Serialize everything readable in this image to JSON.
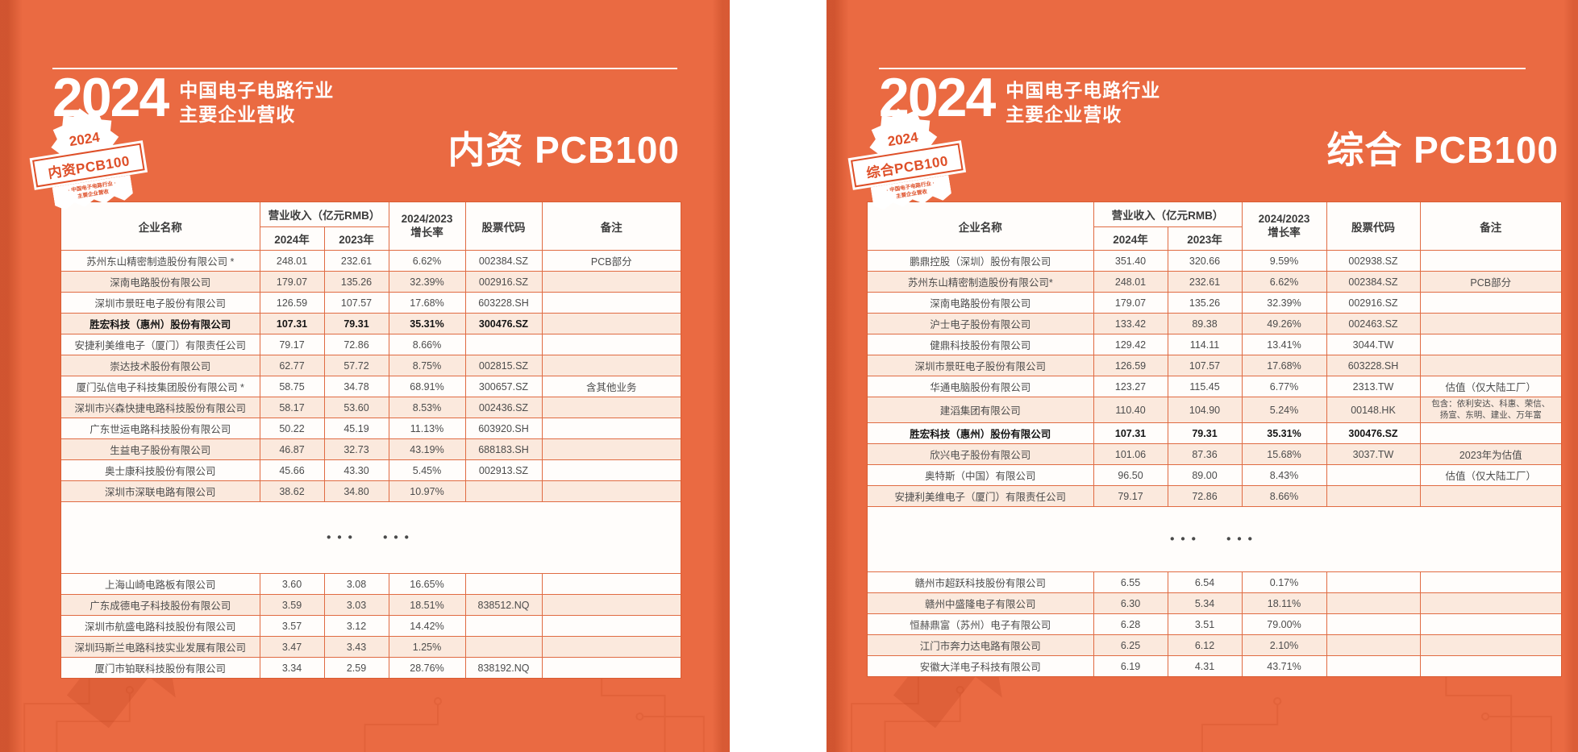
{
  "colors": {
    "background_orange": "#EA6A42",
    "edge_shade": "#B23A10",
    "table_border": "#E06B42",
    "row_alt": "#FBE9DD",
    "badge_accent": "#DE4F28",
    "text_dark": "#4C4C4C"
  },
  "header": {
    "year": "2024",
    "line1": "中国电子电路行业",
    "line2": "主要企业营收"
  },
  "panels": [
    {
      "badge": {
        "year": "2024",
        "title": "内资PCB100",
        "sub1": "· 中国电子电路行业 ·",
        "sub2": "主要企业营收"
      },
      "section_title": "内资 PCB100",
      "columns": {
        "company": "企业名称",
        "revenue_group": "营业收入（亿元RMB）",
        "y2024": "2024年",
        "y2023": "2023年",
        "growth1": "2024/2023",
        "growth2": "增长率",
        "code": "股票代码",
        "remark": "备注"
      },
      "ellipsis": "••• •••",
      "top_rows": [
        {
          "company": "苏州东山精密制造股份有限公司 *",
          "r2024": "248.01",
          "r2023": "232.61",
          "growth": "6.62%",
          "code": "002384.SZ",
          "remark": "PCB部分"
        },
        {
          "company": "深南电路股份有限公司",
          "r2024": "179.07",
          "r2023": "135.26",
          "growth": "32.39%",
          "code": "002916.SZ",
          "remark": ""
        },
        {
          "company": "深圳市景旺电子股份有限公司",
          "r2024": "126.59",
          "r2023": "107.57",
          "growth": "17.68%",
          "code": "603228.SH",
          "remark": ""
        },
        {
          "company": "胜宏科技（惠州）股份有限公司",
          "r2024": "107.31",
          "r2023": "79.31",
          "growth": "35.31%",
          "code": "300476.SZ",
          "remark": "",
          "bold": true
        },
        {
          "company": "安捷利美维电子（厦门）有限责任公司",
          "r2024": "79.17",
          "r2023": "72.86",
          "growth": "8.66%",
          "code": "",
          "remark": ""
        },
        {
          "company": "崇达技术股份有限公司",
          "r2024": "62.77",
          "r2023": "57.72",
          "growth": "8.75%",
          "code": "002815.SZ",
          "remark": ""
        },
        {
          "company": "厦门弘信电子科技集团股份有限公司 *",
          "r2024": "58.75",
          "r2023": "34.78",
          "growth": "68.91%",
          "code": "300657.SZ",
          "remark": "含其他业务"
        },
        {
          "company": "深圳市兴森快捷电路科技股份有限公司",
          "r2024": "58.17",
          "r2023": "53.60",
          "growth": "8.53%",
          "code": "002436.SZ",
          "remark": ""
        },
        {
          "company": "广东世运电路科技股份有限公司",
          "r2024": "50.22",
          "r2023": "45.19",
          "growth": "11.13%",
          "code": "603920.SH",
          "remark": ""
        },
        {
          "company": "生益电子股份有限公司",
          "r2024": "46.87",
          "r2023": "32.73",
          "growth": "43.19%",
          "code": "688183.SH",
          "remark": ""
        },
        {
          "company": "奥士康科技股份有限公司",
          "r2024": "45.66",
          "r2023": "43.30",
          "growth": "5.45%",
          "code": "002913.SZ",
          "remark": ""
        },
        {
          "company": "深圳市深联电路有限公司",
          "r2024": "38.62",
          "r2023": "34.80",
          "growth": "10.97%",
          "code": "",
          "remark": ""
        }
      ],
      "bottom_rows": [
        {
          "company": "上海山崎电路板有限公司",
          "r2024": "3.60",
          "r2023": "3.08",
          "growth": "16.65%",
          "code": "",
          "remark": ""
        },
        {
          "company": "广东成德电子科技股份有限公司",
          "r2024": "3.59",
          "r2023": "3.03",
          "growth": "18.51%",
          "code": "838512.NQ",
          "remark": ""
        },
        {
          "company": "深圳市航盛电路科技股份有限公司",
          "r2024": "3.57",
          "r2023": "3.12",
          "growth": "14.42%",
          "code": "",
          "remark": ""
        },
        {
          "company": "深圳玛斯兰电路科技实业发展有限公司",
          "r2024": "3.47",
          "r2023": "3.43",
          "growth": "1.25%",
          "code": "",
          "remark": ""
        },
        {
          "company": "厦门市铂联科技股份有限公司",
          "r2024": "3.34",
          "r2023": "2.59",
          "growth": "28.76%",
          "code": "838192.NQ",
          "remark": ""
        }
      ]
    },
    {
      "badge": {
        "year": "2024",
        "title": "综合PCB100",
        "sub1": "· 中国电子电路行业 ·",
        "sub2": "主要企业营收"
      },
      "section_title": "综合 PCB100",
      "columns": {
        "company": "企业名称",
        "revenue_group": "营业收入（亿元RMB）",
        "y2024": "2024年",
        "y2023": "2023年",
        "growth1": "2024/2023",
        "growth2": "增长率",
        "code": "股票代码",
        "remark": "备注"
      },
      "ellipsis": "••• •••",
      "top_rows": [
        {
          "company": "鹏鼎控股（深圳）股份有限公司",
          "r2024": "351.40",
          "r2023": "320.66",
          "growth": "9.59%",
          "code": "002938.SZ",
          "remark": ""
        },
        {
          "company": "苏州东山精密制造股份有限公司*",
          "r2024": "248.01",
          "r2023": "232.61",
          "growth": "6.62%",
          "code": "002384.SZ",
          "remark": "PCB部分"
        },
        {
          "company": "深南电路股份有限公司",
          "r2024": "179.07",
          "r2023": "135.26",
          "growth": "32.39%",
          "code": "002916.SZ",
          "remark": ""
        },
        {
          "company": "沪士电子股份有限公司",
          "r2024": "133.42",
          "r2023": "89.38",
          "growth": "49.26%",
          "code": "002463.SZ",
          "remark": ""
        },
        {
          "company": "健鼎科技股份有限公司",
          "r2024": "129.42",
          "r2023": "114.11",
          "growth": "13.41%",
          "code": "3044.TW",
          "remark": ""
        },
        {
          "company": "深圳市景旺电子股份有限公司",
          "r2024": "126.59",
          "r2023": "107.57",
          "growth": "17.68%",
          "code": "603228.SH",
          "remark": ""
        },
        {
          "company": "华通电脑股份有限公司",
          "r2024": "123.27",
          "r2023": "115.45",
          "growth": "6.77%",
          "code": "2313.TW",
          "remark": "估值（仅大陆工厂）"
        },
        {
          "company": "建滔集团有限公司",
          "r2024": "110.40",
          "r2023": "104.90",
          "growth": "5.24%",
          "code": "00148.HK",
          "remark": "包含：依利安达、科惠、荣信、\n扬宣、东明、建业、万年富"
        },
        {
          "company": "胜宏科技（惠州）股份有限公司",
          "r2024": "107.31",
          "r2023": "79.31",
          "growth": "35.31%",
          "code": "300476.SZ",
          "remark": "",
          "bold": true
        },
        {
          "company": "欣兴电子股份有限公司",
          "r2024": "101.06",
          "r2023": "87.36",
          "growth": "15.68%",
          "code": "3037.TW",
          "remark": "2023年为估值"
        },
        {
          "company": "奥特斯（中国）有限公司",
          "r2024": "96.50",
          "r2023": "89.00",
          "growth": "8.43%",
          "code": "",
          "remark": "估值（仅大陆工厂）"
        },
        {
          "company": "安捷利美维电子（厦门）有限责任公司",
          "r2024": "79.17",
          "r2023": "72.86",
          "growth": "8.66%",
          "code": "",
          "remark": ""
        }
      ],
      "bottom_rows": [
        {
          "company": "赣州市超跃科技股份有限公司",
          "r2024": "6.55",
          "r2023": "6.54",
          "growth": "0.17%",
          "code": "",
          "remark": ""
        },
        {
          "company": "赣州中盛隆电子有限公司",
          "r2024": "6.30",
          "r2023": "5.34",
          "growth": "18.11%",
          "code": "",
          "remark": ""
        },
        {
          "company": "恒赫鼎富（苏州）电子有限公司",
          "r2024": "6.28",
          "r2023": "3.51",
          "growth": "79.00%",
          "code": "",
          "remark": ""
        },
        {
          "company": "江门市奔力达电路有限公司",
          "r2024": "6.25",
          "r2023": "6.12",
          "growth": "2.10%",
          "code": "",
          "remark": ""
        },
        {
          "company": "安徽大洋电子科技有限公司",
          "r2024": "6.19",
          "r2023": "4.31",
          "growth": "43.71%",
          "code": "",
          "remark": ""
        }
      ]
    }
  ]
}
